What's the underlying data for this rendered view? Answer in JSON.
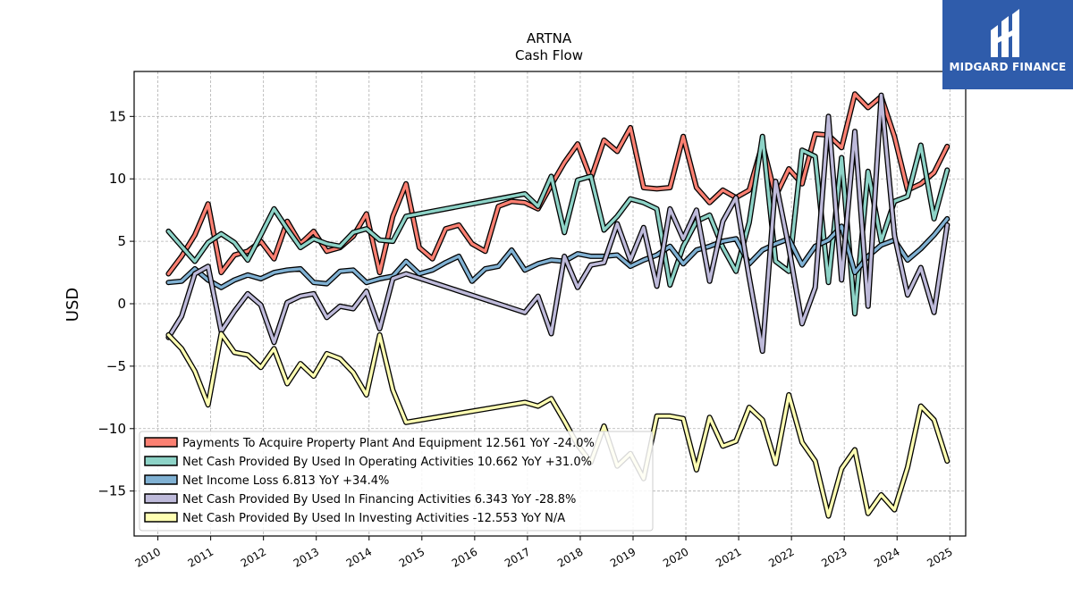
{
  "brand": {
    "name": "MIDGARD FINANCE",
    "bg_color": "#2f5cab"
  },
  "chart_data": {
    "type": "line",
    "title": "ARTNA",
    "subtitle": "Cash Flow",
    "xlabel": "",
    "ylabel": "USD",
    "xlim": [
      2009.55,
      2025.3
    ],
    "ylim": [
      -18.6,
      18.6
    ],
    "x_ticks": [
      2010,
      2011,
      2012,
      2013,
      2014,
      2015,
      2016,
      2017,
      2018,
      2019,
      2020,
      2021,
      2022,
      2023,
      2024,
      2025
    ],
    "x_tick_labels": [
      "2010",
      "2011",
      "2012",
      "2013",
      "2014",
      "2015",
      "2016",
      "2017",
      "2018",
      "2019",
      "2020",
      "2021",
      "2022",
      "2023",
      "2024",
      "2025"
    ],
    "y_ticks": [
      -15,
      -10,
      -5,
      0,
      5,
      10,
      15
    ],
    "y_tick_labels": [
      "−15",
      "−10",
      "−5",
      "0",
      "5",
      "10",
      "15"
    ],
    "grid": true,
    "legend_position": "bottom-left",
    "series": [
      {
        "name": "Payments To Acquire Property Plant And Equipment",
        "legend_label": "Payments To Acquire Property Plant And Equipment  12.561 YoY -24.0%",
        "color": "#fb8072",
        "points": [
          [
            2010.2,
            2.4
          ],
          [
            2010.45,
            3.8
          ],
          [
            2010.7,
            5.5
          ],
          [
            2010.95,
            8.0
          ],
          [
            2011.2,
            2.5
          ],
          [
            2011.45,
            3.9
          ],
          [
            2011.7,
            4.2
          ],
          [
            2011.95,
            5.0
          ],
          [
            2012.2,
            3.6
          ],
          [
            2012.45,
            6.6
          ],
          [
            2012.7,
            4.8
          ],
          [
            2012.95,
            5.8
          ],
          [
            2013.2,
            4.2
          ],
          [
            2013.45,
            4.5
          ],
          [
            2013.7,
            5.4
          ],
          [
            2013.95,
            7.2
          ],
          [
            2014.2,
            2.5
          ],
          [
            2014.45,
            7.0
          ],
          [
            2014.7,
            9.6
          ],
          [
            2014.95,
            4.5
          ],
          [
            2015.2,
            3.6
          ],
          [
            2015.45,
            6.0
          ],
          [
            2015.7,
            6.3
          ],
          [
            2015.95,
            4.8
          ],
          [
            2016.2,
            4.2
          ],
          [
            2016.45,
            7.8
          ],
          [
            2016.7,
            8.2
          ],
          [
            2016.95,
            8.1
          ],
          [
            2017.2,
            7.6
          ],
          [
            2017.45,
            9.5
          ],
          [
            2017.7,
            11.3
          ],
          [
            2017.95,
            12.8
          ],
          [
            2018.2,
            10.0
          ],
          [
            2018.45,
            13.1
          ],
          [
            2018.7,
            12.2
          ],
          [
            2018.95,
            14.1
          ],
          [
            2019.2,
            9.3
          ],
          [
            2019.45,
            9.2
          ],
          [
            2019.7,
            9.3
          ],
          [
            2019.95,
            13.4
          ],
          [
            2020.2,
            9.3
          ],
          [
            2020.45,
            8.1
          ],
          [
            2020.7,
            9.1
          ],
          [
            2020.95,
            8.5
          ],
          [
            2021.2,
            9.1
          ],
          [
            2021.45,
            12.8
          ],
          [
            2021.7,
            8.6
          ],
          [
            2021.95,
            10.8
          ],
          [
            2022.2,
            9.6
          ],
          [
            2022.45,
            13.6
          ],
          [
            2022.7,
            13.5
          ],
          [
            2022.95,
            12.5
          ],
          [
            2023.2,
            16.8
          ],
          [
            2023.45,
            15.7
          ],
          [
            2023.7,
            16.6
          ],
          [
            2023.95,
            13.4
          ],
          [
            2024.2,
            9.1
          ],
          [
            2024.45,
            9.6
          ],
          [
            2024.7,
            10.5
          ],
          [
            2024.95,
            12.6
          ]
        ]
      },
      {
        "name": "Net Cash Provided By Used In Operating Activities",
        "legend_label": "Net Cash Provided By Used In Operating Activities  10.662 YoY +31.0%",
        "color": "#8dd3c7",
        "points": [
          [
            2010.2,
            5.8
          ],
          [
            2010.45,
            4.6
          ],
          [
            2010.7,
            3.4
          ],
          [
            2010.95,
            4.9
          ],
          [
            2011.2,
            5.6
          ],
          [
            2011.45,
            4.9
          ],
          [
            2011.7,
            3.5
          ],
          [
            2011.95,
            5.5
          ],
          [
            2012.2,
            7.6
          ],
          [
            2012.45,
            6.0
          ],
          [
            2012.7,
            4.5
          ],
          [
            2012.95,
            5.2
          ],
          [
            2013.2,
            4.8
          ],
          [
            2013.45,
            4.6
          ],
          [
            2013.7,
            5.7
          ],
          [
            2013.95,
            6.0
          ],
          [
            2014.2,
            5.1
          ],
          [
            2014.45,
            5.0
          ],
          [
            2014.7,
            7.0
          ],
          [
            2016.95,
            8.8
          ],
          [
            2017.2,
            7.8
          ],
          [
            2017.45,
            10.2
          ],
          [
            2017.7,
            5.7
          ],
          [
            2017.95,
            9.9
          ],
          [
            2018.2,
            10.2
          ],
          [
            2018.45,
            5.9
          ],
          [
            2018.7,
            7.0
          ],
          [
            2018.95,
            8.4
          ],
          [
            2019.2,
            8.1
          ],
          [
            2019.45,
            7.6
          ],
          [
            2019.7,
            1.5
          ],
          [
            2019.95,
            4.6
          ],
          [
            2020.2,
            6.6
          ],
          [
            2020.45,
            7.1
          ],
          [
            2020.7,
            4.5
          ],
          [
            2020.95,
            2.6
          ],
          [
            2021.2,
            6.5
          ],
          [
            2021.45,
            13.4
          ],
          [
            2021.7,
            3.4
          ],
          [
            2021.95,
            2.6
          ],
          [
            2022.2,
            12.3
          ],
          [
            2022.45,
            11.8
          ],
          [
            2022.7,
            1.7
          ],
          [
            2022.95,
            11.7
          ],
          [
            2023.2,
            -0.8
          ],
          [
            2023.45,
            10.6
          ],
          [
            2023.7,
            5.0
          ],
          [
            2023.95,
            8.2
          ],
          [
            2024.2,
            8.6
          ],
          [
            2024.45,
            12.7
          ],
          [
            2024.7,
            6.8
          ],
          [
            2024.95,
            10.7
          ]
        ]
      },
      {
        "name": "Net Income Loss",
        "legend_label": "Net Income Loss  6.813 YoY +34.4%",
        "color": "#80b1d3",
        "points": [
          [
            2010.2,
            1.7
          ],
          [
            2010.45,
            1.8
          ],
          [
            2010.7,
            2.8
          ],
          [
            2010.95,
            1.9
          ],
          [
            2011.2,
            1.3
          ],
          [
            2011.45,
            1.9
          ],
          [
            2011.7,
            2.3
          ],
          [
            2011.95,
            2.0
          ],
          [
            2012.2,
            2.5
          ],
          [
            2012.45,
            2.7
          ],
          [
            2012.7,
            2.8
          ],
          [
            2012.95,
            1.7
          ],
          [
            2013.2,
            1.6
          ],
          [
            2013.45,
            2.6
          ],
          [
            2013.7,
            2.7
          ],
          [
            2013.95,
            1.7
          ],
          [
            2014.2,
            2.0
          ],
          [
            2014.45,
            2.2
          ],
          [
            2014.7,
            3.4
          ],
          [
            2014.95,
            2.4
          ],
          [
            2015.2,
            2.7
          ],
          [
            2015.45,
            3.3
          ],
          [
            2015.7,
            3.8
          ],
          [
            2015.95,
            1.8
          ],
          [
            2016.2,
            2.8
          ],
          [
            2016.45,
            3.0
          ],
          [
            2016.7,
            4.3
          ],
          [
            2016.95,
            2.7
          ],
          [
            2017.2,
            3.2
          ],
          [
            2017.45,
            3.5
          ],
          [
            2017.7,
            3.4
          ],
          [
            2017.95,
            4.0
          ],
          [
            2018.2,
            3.8
          ],
          [
            2018.45,
            3.8
          ],
          [
            2018.7,
            3.9
          ],
          [
            2018.95,
            3.0
          ],
          [
            2019.2,
            3.5
          ],
          [
            2019.45,
            3.9
          ],
          [
            2019.7,
            4.6
          ],
          [
            2019.95,
            3.2
          ],
          [
            2020.2,
            4.3
          ],
          [
            2020.45,
            4.6
          ],
          [
            2020.7,
            5.0
          ],
          [
            2020.95,
            5.2
          ],
          [
            2021.2,
            3.2
          ],
          [
            2021.45,
            4.3
          ],
          [
            2021.7,
            4.8
          ],
          [
            2021.95,
            5.2
          ],
          [
            2022.2,
            3.1
          ],
          [
            2022.45,
            4.6
          ],
          [
            2022.7,
            5.1
          ],
          [
            2022.95,
            6.2
          ],
          [
            2023.2,
            2.5
          ],
          [
            2023.45,
            3.8
          ],
          [
            2023.7,
            4.7
          ],
          [
            2023.95,
            5.1
          ],
          [
            2024.2,
            3.5
          ],
          [
            2024.45,
            4.4
          ],
          [
            2024.7,
            5.5
          ],
          [
            2024.95,
            6.8
          ]
        ]
      },
      {
        "name": "Net Cash Provided By Used In Financing Activities",
        "legend_label": "Net Cash Provided By Used In Financing Activities  6.343 YoY -28.8%",
        "color": "#bebada",
        "points": [
          [
            2010.2,
            -2.7
          ],
          [
            2010.45,
            -1.0
          ],
          [
            2010.7,
            2.4
          ],
          [
            2010.95,
            3.0
          ],
          [
            2011.2,
            -2.2
          ],
          [
            2011.45,
            -0.6
          ],
          [
            2011.7,
            0.8
          ],
          [
            2011.95,
            -0.1
          ],
          [
            2012.2,
            -3.1
          ],
          [
            2012.45,
            0.1
          ],
          [
            2012.7,
            0.6
          ],
          [
            2012.95,
            0.8
          ],
          [
            2013.2,
            -1.1
          ],
          [
            2013.45,
            -0.2
          ],
          [
            2013.7,
            -0.4
          ],
          [
            2013.95,
            1.0
          ],
          [
            2014.2,
            -2.0
          ],
          [
            2014.45,
            2.0
          ],
          [
            2014.7,
            2.4
          ],
          [
            2016.95,
            -0.7
          ],
          [
            2017.2,
            0.6
          ],
          [
            2017.45,
            -2.4
          ],
          [
            2017.7,
            3.8
          ],
          [
            2017.95,
            1.3
          ],
          [
            2018.2,
            3.1
          ],
          [
            2018.45,
            3.3
          ],
          [
            2018.7,
            6.4
          ],
          [
            2018.95,
            3.5
          ],
          [
            2019.2,
            6.1
          ],
          [
            2019.45,
            1.4
          ],
          [
            2019.7,
            7.6
          ],
          [
            2019.95,
            5.2
          ],
          [
            2020.2,
            7.5
          ],
          [
            2020.45,
            1.8
          ],
          [
            2020.7,
            6.6
          ],
          [
            2020.95,
            8.5
          ],
          [
            2021.2,
            2.1
          ],
          [
            2021.45,
            -3.8
          ],
          [
            2021.7,
            9.8
          ],
          [
            2021.95,
            4.5
          ],
          [
            2022.2,
            -1.6
          ],
          [
            2022.45,
            1.3
          ],
          [
            2022.7,
            15.0
          ],
          [
            2022.95,
            1.9
          ],
          [
            2023.2,
            13.8
          ],
          [
            2023.45,
            -0.2
          ],
          [
            2023.7,
            16.7
          ],
          [
            2023.95,
            5.5
          ],
          [
            2024.2,
            0.7
          ],
          [
            2024.45,
            2.9
          ],
          [
            2024.7,
            -0.7
          ],
          [
            2024.95,
            6.3
          ]
        ]
      },
      {
        "name": "Net Cash Provided By Used In Investing Activities",
        "legend_label": "Net Cash Provided By Used In Investing Activities  -12.553 YoY N/A",
        "color": "#ffffb3",
        "points": [
          [
            2010.2,
            -2.5
          ],
          [
            2010.45,
            -3.6
          ],
          [
            2010.7,
            -5.4
          ],
          [
            2010.95,
            -8.1
          ],
          [
            2011.2,
            -2.4
          ],
          [
            2011.45,
            -3.9
          ],
          [
            2011.7,
            -4.1
          ],
          [
            2011.95,
            -5.1
          ],
          [
            2012.2,
            -3.6
          ],
          [
            2012.45,
            -6.4
          ],
          [
            2012.7,
            -4.8
          ],
          [
            2012.95,
            -5.8
          ],
          [
            2013.2,
            -4.0
          ],
          [
            2013.45,
            -4.4
          ],
          [
            2013.7,
            -5.5
          ],
          [
            2013.95,
            -7.3
          ],
          [
            2014.2,
            -2.5
          ],
          [
            2014.45,
            -6.9
          ],
          [
            2014.7,
            -9.5
          ],
          [
            2016.95,
            -7.9
          ],
          [
            2017.2,
            -8.2
          ],
          [
            2017.45,
            -7.6
          ],
          [
            2017.7,
            -9.4
          ],
          [
            2017.95,
            -11.3
          ],
          [
            2018.2,
            -12.7
          ],
          [
            2018.45,
            -9.8
          ],
          [
            2018.7,
            -13.0
          ],
          [
            2018.95,
            -12.0
          ],
          [
            2019.2,
            -14.0
          ],
          [
            2019.45,
            -9.0
          ],
          [
            2019.7,
            -9.0
          ],
          [
            2019.95,
            -9.2
          ],
          [
            2020.2,
            -13.3
          ],
          [
            2020.45,
            -9.1
          ],
          [
            2020.7,
            -11.4
          ],
          [
            2020.95,
            -11.0
          ],
          [
            2021.2,
            -8.3
          ],
          [
            2021.45,
            -9.3
          ],
          [
            2021.7,
            -12.8
          ],
          [
            2021.95,
            -7.3
          ],
          [
            2022.2,
            -11.1
          ],
          [
            2022.45,
            -12.6
          ],
          [
            2022.7,
            -17.0
          ],
          [
            2022.95,
            -13.2
          ],
          [
            2023.2,
            -11.7
          ],
          [
            2023.45,
            -16.8
          ],
          [
            2023.7,
            -15.3
          ],
          [
            2023.95,
            -16.5
          ],
          [
            2024.2,
            -13.1
          ],
          [
            2024.45,
            -8.2
          ],
          [
            2024.7,
            -9.3
          ],
          [
            2024.95,
            -12.6
          ]
        ]
      }
    ]
  }
}
